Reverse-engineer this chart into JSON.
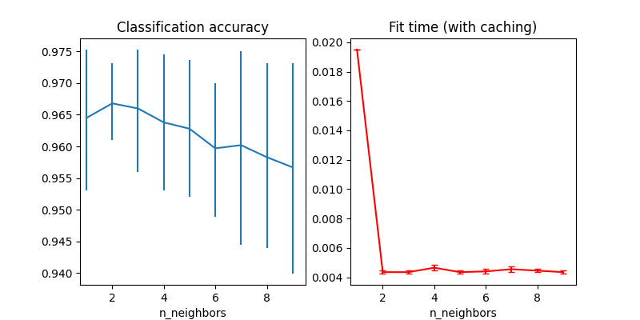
{
  "title_left": "Classification accuracy",
  "title_right": "Fit time (with caching)",
  "xlabel": "n_neighbors",
  "x": [
    1,
    2,
    3,
    4,
    5,
    6,
    7,
    8,
    9
  ],
  "acc_mean": [
    0.9645,
    0.9668,
    0.966,
    0.9638,
    0.9628,
    0.9597,
    0.9602,
    0.9583,
    0.9567
  ],
  "acc_yerr_lower": [
    0.0115,
    0.0058,
    0.01,
    0.0108,
    0.0108,
    0.0108,
    0.0158,
    0.0143,
    0.0168
  ],
  "acc_yerr_upper": [
    0.0108,
    0.0063,
    0.0093,
    0.0108,
    0.0108,
    0.0103,
    0.0148,
    0.0148,
    0.0165
  ],
  "fit_mean": [
    0.0195,
    0.00435,
    0.00435,
    0.00465,
    0.00435,
    0.0044,
    0.00455,
    0.00445,
    0.00435
  ],
  "fit_yerr_lower": [
    0.0,
    0.0001,
    0.0001,
    0.0002,
    0.0001,
    0.00015,
    0.0002,
    0.0001,
    0.0001
  ],
  "fit_yerr_upper": [
    0.0,
    0.0001,
    0.0001,
    0.0002,
    0.0001,
    0.00015,
    0.0002,
    0.0001,
    0.0001
  ],
  "fit_cap_size": 3,
  "acc_color": "#1f77b4",
  "fit_color": "red",
  "figsize": [
    8.0,
    4.0
  ],
  "dpi": 100,
  "acc_xlim": [
    0.75,
    9.5
  ],
  "fit_xlim": [
    0.75,
    9.5
  ],
  "acc_xticks": [
    2,
    4,
    6,
    8
  ],
  "fit_xticks": [
    2,
    4,
    6,
    8
  ]
}
